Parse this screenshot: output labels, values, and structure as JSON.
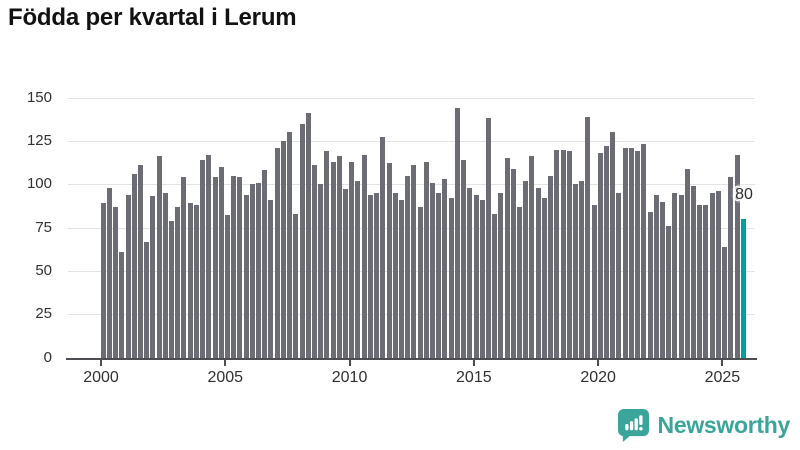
{
  "chart_data": {
    "type": "bar",
    "title": "Födda per kvartal i Lerum",
    "frequency": "quarterly",
    "x_start": "2000 Q1",
    "x_end": "2025 Q4",
    "values": [
      89,
      98,
      87,
      61,
      94,
      106,
      111,
      67,
      93,
      116,
      95,
      79,
      87,
      104,
      89,
      88,
      114,
      117,
      104,
      110,
      82,
      105,
      104,
      94,
      100,
      101,
      108,
      91,
      121,
      125,
      130,
      83,
      135,
      141,
      111,
      100,
      119,
      113,
      116,
      97,
      113,
      102,
      117,
      94,
      95,
      127,
      112,
      95,
      91,
      105,
      111,
      87,
      113,
      101,
      95,
      103,
      92,
      144,
      114,
      98,
      94,
      91,
      138,
      83,
      95,
      115,
      109,
      87,
      102,
      116,
      98,
      92,
      105,
      120,
      120,
      119,
      100,
      102,
      139,
      88,
      118,
      122,
      130,
      95,
      121,
      121,
      119,
      123,
      84,
      94,
      90,
      76,
      95,
      94,
      109,
      99,
      88,
      88,
      95,
      96,
      64,
      104,
      117,
      80
    ],
    "x_tick_labels": [
      "2000",
      "2005",
      "2010",
      "2015",
      "2020",
      "2025"
    ],
    "y_ticks": [
      0,
      25,
      50,
      75,
      100,
      125,
      150
    ],
    "ylim": [
      0,
      150
    ],
    "grid": true,
    "legend": "none",
    "bar_color": "#6c6c75",
    "highlight_last": true,
    "highlight_color": "#00a0a0",
    "annotation": {
      "text": "80",
      "value": 80
    }
  },
  "logo": {
    "text": "Newsworthy",
    "color": "#3ba59c"
  }
}
